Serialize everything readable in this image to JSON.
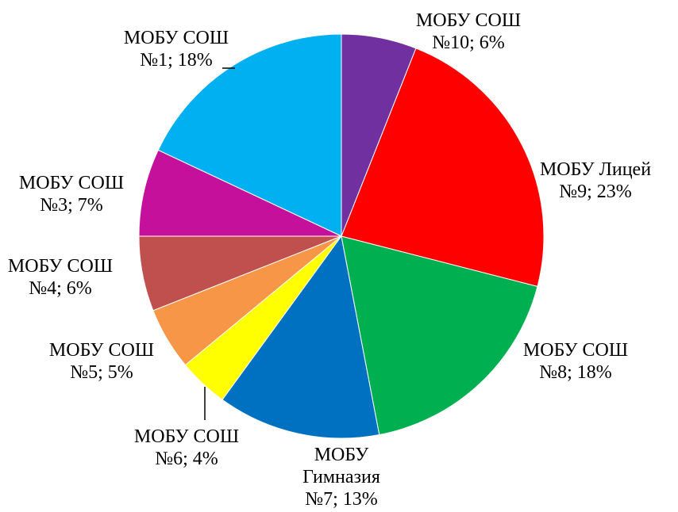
{
  "chart_data": {
    "type": "pie",
    "categories": [
      "МОБУ СОШ №10; 6%",
      "МОБУ Лицей №9; 23%",
      "МОБУ СОШ №8; 18%",
      "МОБУ Гимназия №7; 13%",
      "МОБУ СОШ №6; 4%",
      "МОБУ СОШ №5; 5%",
      "МОБУ СОШ №4; 6%",
      "МОБУ СОШ №3; 7%",
      "МОБУ СОШ №1; 18%"
    ],
    "values": [
      6,
      23,
      18,
      13,
      4,
      5,
      6,
      7,
      18
    ],
    "colors": [
      "#7030a0",
      "#ff0000",
      "#00b050",
      "#0070c0",
      "#ffff00",
      "#f79646",
      "#c0504d",
      "#c5109c",
      "#00b0f0"
    ]
  }
}
